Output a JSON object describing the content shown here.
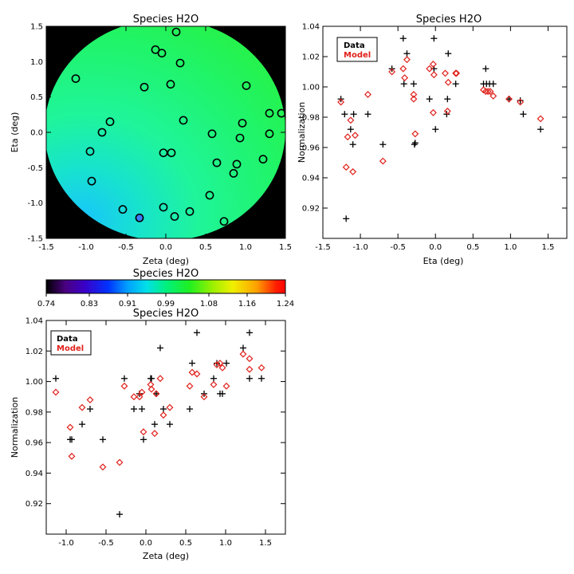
{
  "chart_data": [
    {
      "id": "map",
      "type": "scatter",
      "title": "Species H2O",
      "xlabel": "Zeta (deg)",
      "ylabel": "Eta (deg)",
      "xlim": [
        -1.5,
        1.5
      ],
      "ylim": [
        -1.5,
        1.5
      ],
      "xticks": [
        "-1.5",
        "-1.0",
        "-0.5",
        "0.0",
        "0.5",
        "1.0",
        "1.5"
      ],
      "yticks": [
        "-1.5",
        "-1.0",
        "-0.5",
        "0.0",
        "0.5",
        "1.0",
        "1.5"
      ],
      "background": "#000000",
      "circles": [
        [
          0.13,
          1.42
        ],
        [
          -0.13,
          1.17
        ],
        [
          -0.05,
          1.12
        ],
        [
          -1.13,
          0.76
        ],
        [
          0.18,
          0.98
        ],
        [
          -0.27,
          0.64
        ],
        [
          0.06,
          0.68
        ],
        [
          1.01,
          0.66
        ],
        [
          -0.7,
          0.15
        ],
        [
          -0.8,
          0.0
        ],
        [
          0.22,
          0.17
        ],
        [
          0.96,
          0.13
        ],
        [
          1.3,
          0.27
        ],
        [
          1.45,
          0.27
        ],
        [
          0.58,
          -0.02
        ],
        [
          0.93,
          -0.08
        ],
        [
          1.3,
          -0.02
        ],
        [
          -0.95,
          -0.27
        ],
        [
          -0.03,
          -0.29
        ],
        [
          0.07,
          -0.29
        ],
        [
          0.64,
          -0.43
        ],
        [
          0.89,
          -0.45
        ],
        [
          1.22,
          -0.38
        ],
        [
          0.85,
          -0.58
        ],
        [
          -0.93,
          -0.69
        ],
        [
          0.55,
          -0.89
        ],
        [
          -0.54,
          -1.09
        ],
        [
          -0.03,
          -1.06
        ],
        [
          0.3,
          -1.12
        ],
        [
          0.11,
          -1.19
        ],
        [
          -0.33,
          -1.21
        ],
        [
          0.73,
          -1.26
        ]
      ]
    },
    {
      "id": "colorbar",
      "type": "heatmap",
      "title": "Species H2O",
      "range": [
        0.74,
        1.24
      ],
      "ticks": [
        "0.74",
        "0.83",
        "0.91",
        "0.99",
        "1.08",
        "1.16",
        "1.24"
      ]
    },
    {
      "id": "eta",
      "type": "scatter",
      "title": "Species H2O",
      "xlabel": "Eta (deg)",
      "ylabel": "Normalization",
      "xlim": [
        -1.5,
        1.75
      ],
      "ylim": [
        0.9,
        1.04
      ],
      "xticks": [
        "-1.5",
        "-1.0",
        "-0.5",
        "0.0",
        "0.5",
        "1.0",
        "1.5"
      ],
      "yticks": [
        "0.92",
        "0.94",
        "0.96",
        "0.98",
        "1.00",
        "1.02",
        "1.04"
      ],
      "legend": [
        "Data",
        "Model"
      ],
      "series": [
        {
          "name": "Data",
          "marker": "plus",
          "color": "#000000",
          "points": [
            [
              -1.26,
              0.992
            ],
            [
              -1.21,
              0.982
            ],
            [
              -1.19,
              0.913
            ],
            [
              -1.13,
              0.972
            ],
            [
              -1.1,
              0.962
            ],
            [
              -1.09,
              0.982
            ],
            [
              -0.9,
              0.982
            ],
            [
              -0.7,
              0.962
            ],
            [
              -0.58,
              1.012
            ],
            [
              -0.43,
              1.032
            ],
            [
              -0.38,
              1.022
            ],
            [
              -0.42,
              1.002
            ],
            [
              -0.29,
              1.002
            ],
            [
              -0.28,
              0.962
            ],
            [
              -0.27,
              0.963
            ],
            [
              -0.08,
              0.992
            ],
            [
              -0.02,
              1.032
            ],
            [
              -0.02,
              1.012
            ],
            [
              0.0,
              0.972
            ],
            [
              0.15,
              0.982
            ],
            [
              0.16,
              0.992
            ],
            [
              0.17,
              1.022
            ],
            [
              0.27,
              1.002
            ],
            [
              0.64,
              1.002
            ],
            [
              0.67,
              1.012
            ],
            [
              0.68,
              1.002
            ],
            [
              0.72,
              1.002
            ],
            [
              0.77,
              1.002
            ],
            [
              0.98,
              0.992
            ],
            [
              1.13,
              0.991
            ],
            [
              1.17,
              0.982
            ],
            [
              1.4,
              0.972
            ]
          ]
        },
        {
          "name": "Model",
          "marker": "diamond",
          "color": "#e0201a",
          "points": [
            [
              -1.26,
              0.99
            ],
            [
              -1.19,
              0.947
            ],
            [
              -1.17,
              0.967
            ],
            [
              -1.13,
              0.978
            ],
            [
              -1.1,
              0.944
            ],
            [
              -1.07,
              0.968
            ],
            [
              -0.9,
              0.995
            ],
            [
              -0.7,
              0.951
            ],
            [
              -0.58,
              1.01
            ],
            [
              -0.43,
              1.012
            ],
            [
              -0.38,
              1.018
            ],
            [
              -0.41,
              1.006
            ],
            [
              -0.29,
              0.995
            ],
            [
              -0.29,
              0.992
            ],
            [
              -0.27,
              0.969
            ],
            [
              -0.08,
              1.012
            ],
            [
              -0.03,
              1.015
            ],
            [
              -0.02,
              1.008
            ],
            [
              -0.03,
              0.983
            ],
            [
              0.16,
              0.984
            ],
            [
              0.13,
              1.009
            ],
            [
              0.17,
              1.003
            ],
            [
              0.27,
              1.009
            ],
            [
              0.28,
              1.009
            ],
            [
              0.64,
              0.998
            ],
            [
              0.67,
              0.997
            ],
            [
              0.7,
              0.997
            ],
            [
              0.73,
              0.997
            ],
            [
              0.77,
              0.994
            ],
            [
              0.98,
              0.992
            ],
            [
              1.13,
              0.99
            ],
            [
              1.4,
              0.979
            ]
          ]
        }
      ]
    },
    {
      "id": "zeta",
      "type": "scatter",
      "title": "Species H2O",
      "xlabel": "Zeta (deg)",
      "ylabel": "Normalization",
      "xlim": [
        -1.25,
        1.75
      ],
      "ylim": [
        0.9,
        1.04
      ],
      "xticks": [
        "-1.0",
        "-0.5",
        "0.0",
        "0.5",
        "1.0",
        "1.5"
      ],
      "yticks": [
        "0.92",
        "0.94",
        "0.96",
        "0.98",
        "1.00",
        "1.02",
        "1.04"
      ],
      "legend": [
        "Data",
        "Model"
      ],
      "series": [
        {
          "name": "Data",
          "marker": "plus",
          "color": "#000000",
          "points": [
            [
              -1.13,
              1.002
            ],
            [
              -0.95,
              0.962
            ],
            [
              -0.93,
              0.962
            ],
            [
              -0.8,
              0.972
            ],
            [
              -0.7,
              0.982
            ],
            [
              -0.54,
              0.962
            ],
            [
              -0.33,
              0.913
            ],
            [
              -0.27,
              1.002
            ],
            [
              -0.15,
              0.982
            ],
            [
              -0.08,
              0.992
            ],
            [
              -0.05,
              0.982
            ],
            [
              -0.03,
              0.962
            ],
            [
              0.06,
              1.002
            ],
            [
              0.07,
              1.002
            ],
            [
              0.11,
              0.972
            ],
            [
              0.13,
              0.992
            ],
            [
              0.18,
              1.022
            ],
            [
              0.22,
              0.982
            ],
            [
              0.3,
              0.972
            ],
            [
              0.55,
              0.982
            ],
            [
              0.58,
              1.012
            ],
            [
              0.64,
              1.032
            ],
            [
              0.73,
              0.992
            ],
            [
              0.85,
              1.002
            ],
            [
              0.89,
              1.012
            ],
            [
              0.93,
              0.992
            ],
            [
              0.96,
              0.992
            ],
            [
              1.01,
              1.012
            ],
            [
              1.22,
              1.022
            ],
            [
              1.3,
              1.032
            ],
            [
              1.3,
              1.002
            ],
            [
              1.45,
              1.002
            ]
          ]
        },
        {
          "name": "Model",
          "marker": "diamond",
          "color": "#e0201a",
          "points": [
            [
              -1.13,
              0.993
            ],
            [
              -0.95,
              0.97
            ],
            [
              -0.93,
              0.951
            ],
            [
              -0.8,
              0.983
            ],
            [
              -0.7,
              0.988
            ],
            [
              -0.54,
              0.944
            ],
            [
              -0.33,
              0.947
            ],
            [
              -0.27,
              0.997
            ],
            [
              -0.15,
              0.99
            ],
            [
              -0.08,
              0.99
            ],
            [
              -0.05,
              0.993
            ],
            [
              -0.03,
              0.967
            ],
            [
              0.06,
              0.998
            ],
            [
              0.07,
              0.995
            ],
            [
              0.11,
              0.966
            ],
            [
              0.13,
              0.992
            ],
            [
              0.18,
              1.002
            ],
            [
              0.22,
              0.978
            ],
            [
              0.3,
              0.983
            ],
            [
              0.55,
              0.997
            ],
            [
              0.58,
              1.006
            ],
            [
              0.64,
              1.005
            ],
            [
              0.73,
              0.99
            ],
            [
              0.85,
              0.998
            ],
            [
              0.89,
              1.011
            ],
            [
              0.93,
              1.012
            ],
            [
              0.96,
              1.009
            ],
            [
              1.01,
              0.997
            ],
            [
              1.22,
              1.018
            ],
            [
              1.3,
              1.015
            ],
            [
              1.3,
              1.008
            ],
            [
              1.45,
              1.009
            ]
          ]
        }
      ]
    }
  ]
}
